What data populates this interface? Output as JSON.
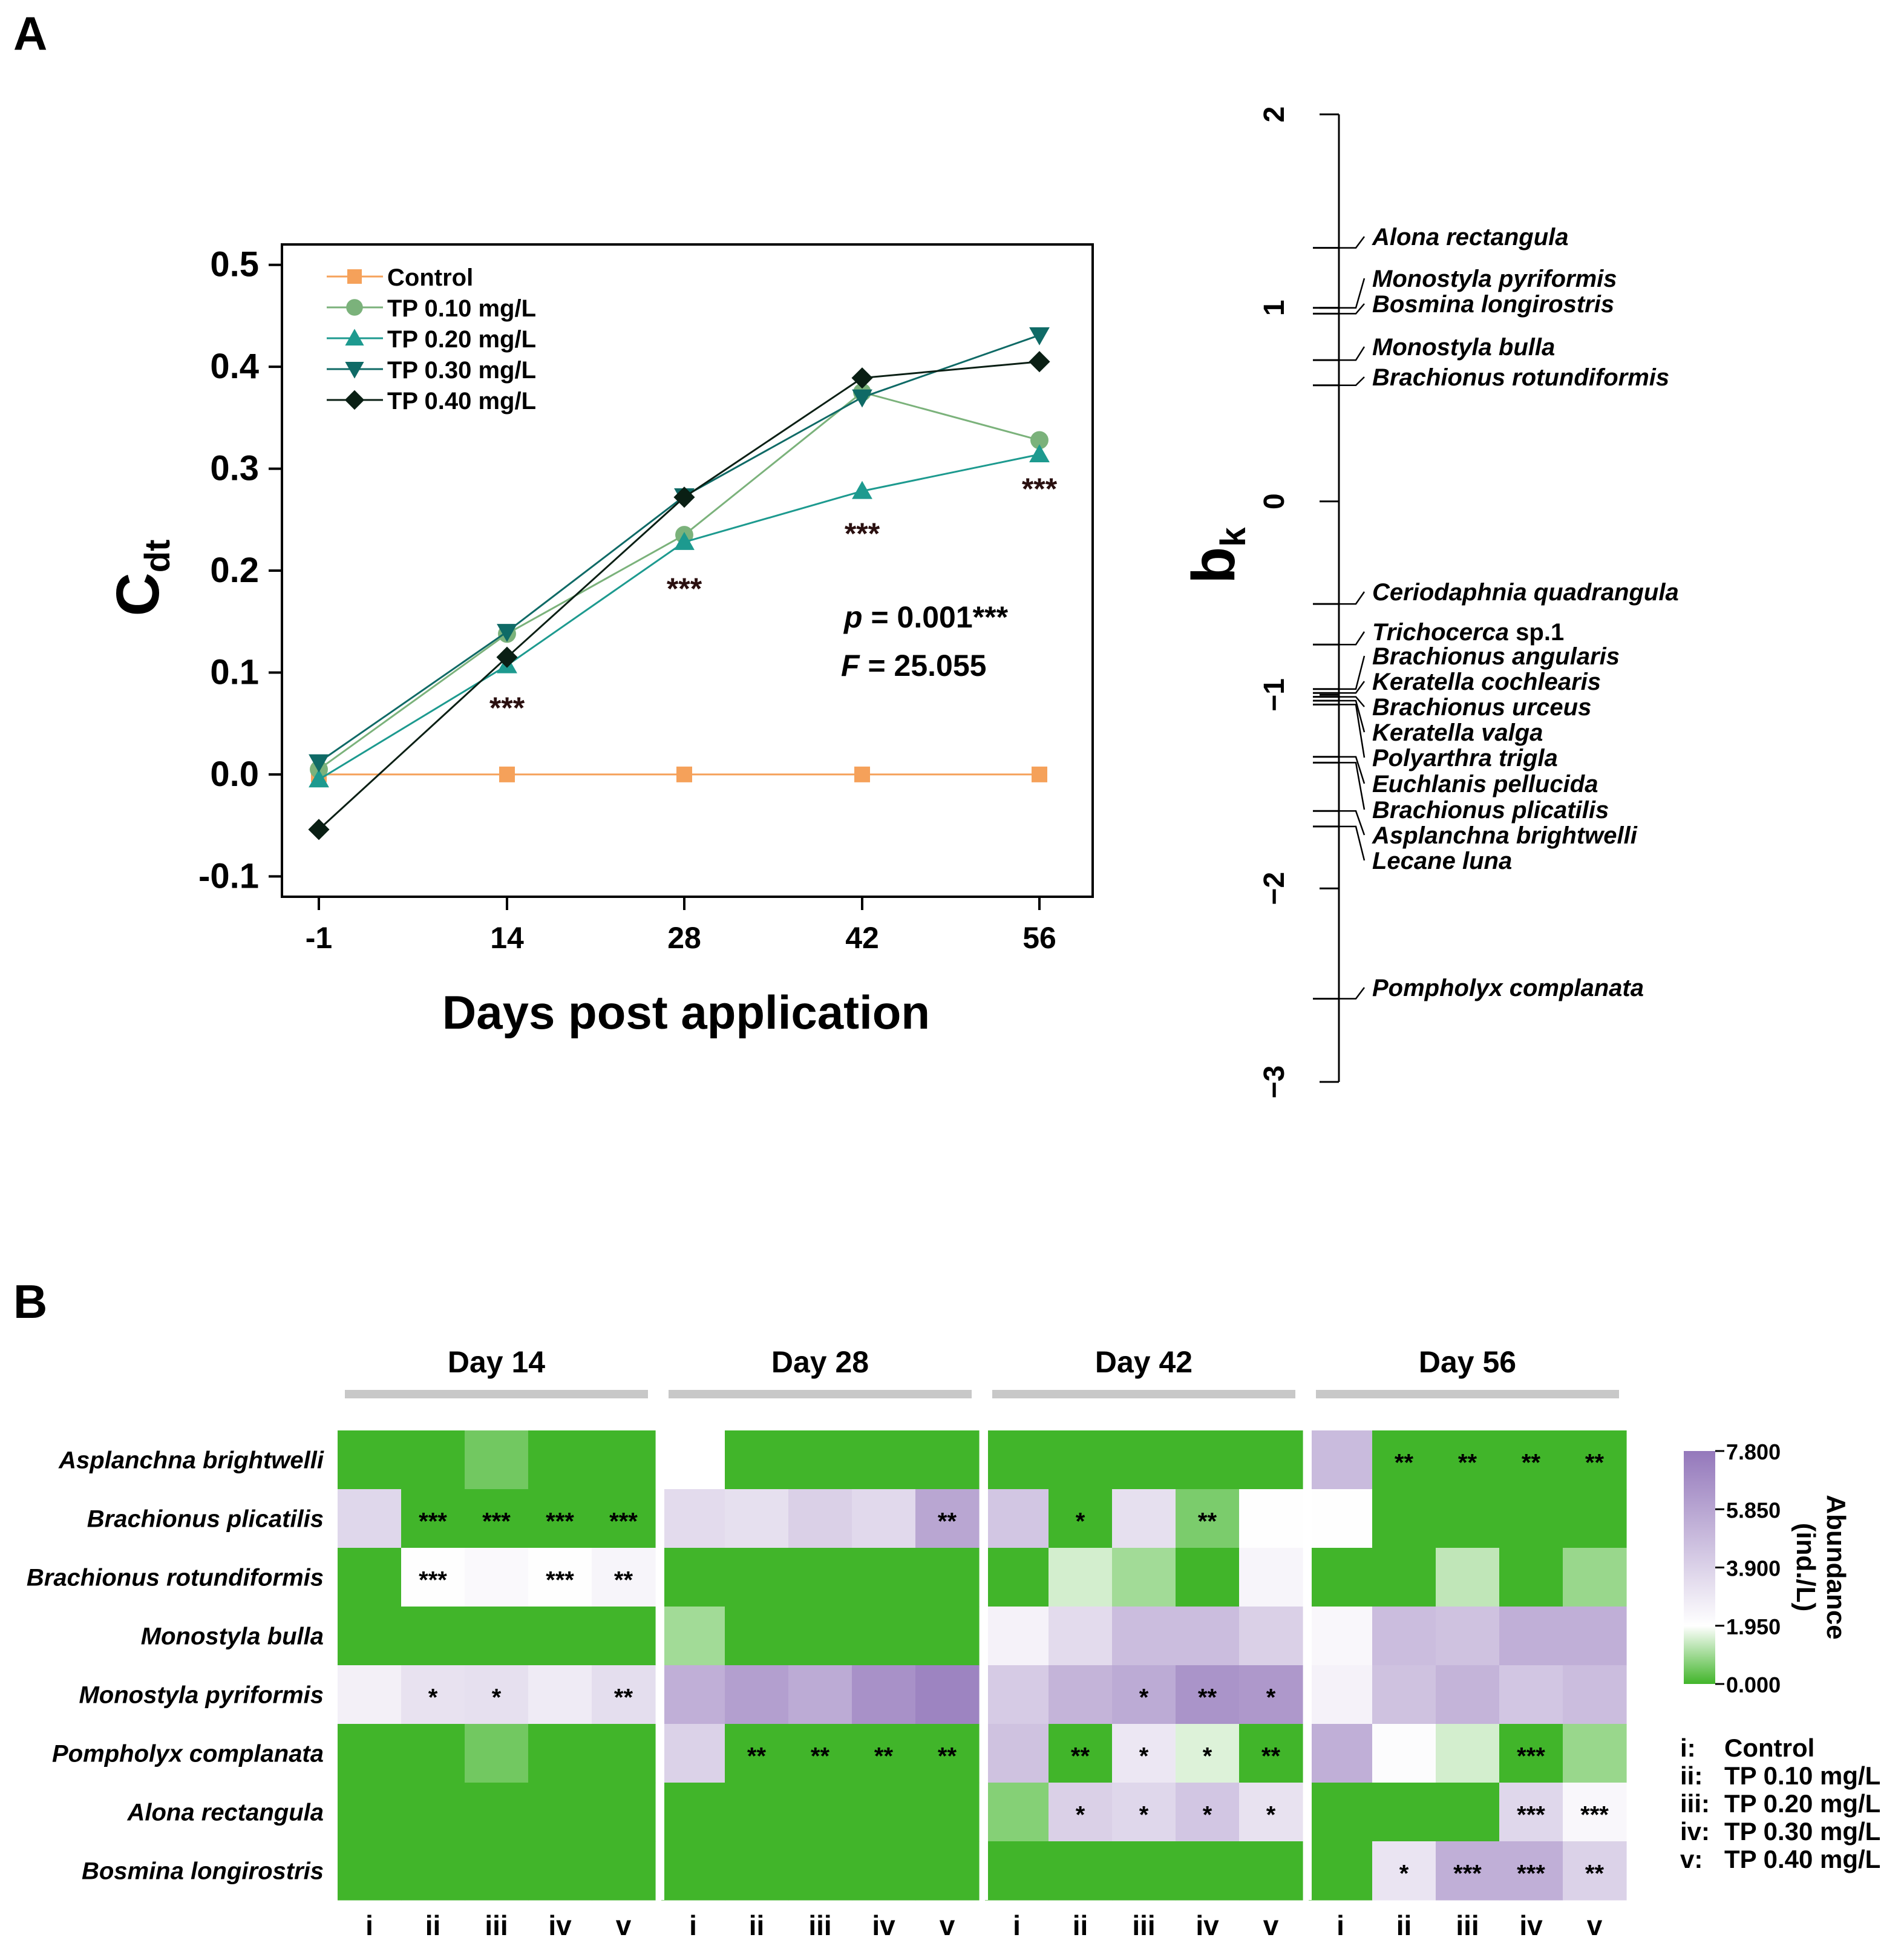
{
  "panel_labels": {
    "a": "A",
    "b": "B"
  },
  "chart_data": [
    {
      "type": "line",
      "id": "cdt-line",
      "title": "",
      "xlabel": "Days post application",
      "ylabel": "C",
      "ylabel_sub": "dt",
      "categories": [
        "-1",
        "14",
        "28",
        "42",
        "56"
      ],
      "yticks": [
        "0.5",
        "0.4",
        "0.3",
        "0.2",
        "0.1",
        "0.0",
        "-0.1"
      ],
      "ytick_values": [
        0.5,
        0.4,
        0.3,
        0.2,
        0.1,
        0.0,
        -0.1
      ],
      "ylim": [
        -0.12,
        0.52
      ],
      "series": [
        {
          "name": "Control",
          "color": "#f5a15a",
          "marker": "square",
          "values": [
            0.0,
            0.0,
            0.0,
            0.0,
            0.0
          ]
        },
        {
          "name": "TP 0.10 mg/L",
          "color": "#7bb27b",
          "marker": "circle",
          "values": [
            0.005,
            0.138,
            0.235,
            0.375,
            0.328
          ]
        },
        {
          "name": "TP 0.20 mg/L",
          "color": "#1d9a8f",
          "marker": "triangle-up",
          "values": [
            -0.005,
            0.107,
            0.228,
            0.278,
            0.314
          ]
        },
        {
          "name": "TP 0.30 mg/L",
          "color": "#0f6a66",
          "marker": "triangle-down",
          "values": [
            0.012,
            0.14,
            0.273,
            0.37,
            0.431
          ]
        },
        {
          "name": "TP 0.40 mg/L",
          "color": "#0a1f14",
          "marker": "diamond",
          "values": [
            -0.054,
            0.115,
            0.272,
            0.389,
            0.405
          ]
        }
      ],
      "significance": [
        {
          "category": "14",
          "label": "***",
          "value": 0.07
        },
        {
          "category": "28",
          "label": "***",
          "value": 0.187
        },
        {
          "category": "42",
          "label": "***",
          "value": 0.241
        },
        {
          "category": "56",
          "label": "***",
          "value": 0.285
        }
      ],
      "stats": {
        "p_label": "p",
        "p_value": " = 0.001***",
        "f_label": "F",
        "f_value": " = 25.055"
      }
    },
    {
      "type": "scatter",
      "id": "bk-axis",
      "ylabel": "b",
      "ylabel_sub": "k",
      "ylim": [
        -3,
        2
      ],
      "yticks": [
        "2",
        "1",
        "0",
        "−1",
        "−2",
        "−3"
      ],
      "ytick_values": [
        2,
        1,
        0,
        -1,
        -2,
        -3
      ],
      "species": [
        {
          "name": "Alona rectangula",
          "value": 1.31,
          "suffix": ""
        },
        {
          "name": "Monostyla pyriformis",
          "value": 1.0,
          "suffix": ""
        },
        {
          "name": "Bosmina longirostris",
          "value": 0.97,
          "suffix": ""
        },
        {
          "name": "Monostyla bulla",
          "value": 0.73,
          "suffix": ""
        },
        {
          "name": "Brachionus rotundiformis",
          "value": 0.6,
          "suffix": ""
        },
        {
          "name": "Ceriodaphnia quadrangula",
          "value": -0.53,
          "suffix": ""
        },
        {
          "name": "Trichocerca",
          "value": -0.74,
          "suffix": " sp.1"
        },
        {
          "name": "Brachionus angularis",
          "value": -0.97,
          "suffix": ""
        },
        {
          "name": "Keratella cochlearis",
          "value": -0.99,
          "suffix": ""
        },
        {
          "name": "Brachionus urceus",
          "value": -1.01,
          "suffix": ""
        },
        {
          "name": "Keratella valga",
          "value": -1.03,
          "suffix": ""
        },
        {
          "name": "Polyarthra trigla",
          "value": -1.05,
          "suffix": ""
        },
        {
          "name": "Euchlanis pellucida",
          "value": -1.32,
          "suffix": ""
        },
        {
          "name": "Brachionus plicatilis",
          "value": -1.35,
          "suffix": ""
        },
        {
          "name": "Asplanchna brightwelli",
          "value": -1.6,
          "suffix": ""
        },
        {
          "name": "Lecane luna",
          "value": -1.68,
          "suffix": ""
        },
        {
          "name": "Pompholyx complanata",
          "value": -2.57,
          "suffix": ""
        }
      ]
    },
    {
      "type": "heatmap",
      "id": "abundance-heatmap",
      "days": [
        "Day 14",
        "Day 28",
        "Day 42",
        "Day 56"
      ],
      "columns": [
        "i",
        "ii",
        "iii",
        "iv",
        "v"
      ],
      "rows": [
        "Asplanchna brightwelli",
        "Brachionus plicatilis",
        "Brachionus rotundiformis",
        "Monostyla bulla",
        "Monostyla pyriformis",
        "Pompholyx complanata",
        "Alona rectangula",
        "Bosmina longirostris"
      ],
      "values": [
        [
          [
            0,
            0,
            0.5,
            0,
            0
          ],
          [
            1.95,
            0,
            0,
            0,
            0
          ],
          [
            0,
            0,
            0,
            0,
            0
          ],
          [
            4.9,
            0,
            0,
            0,
            0
          ]
        ],
        [
          [
            3.7,
            0,
            0,
            0,
            0
          ],
          [
            3.5,
            3.3,
            4.0,
            3.6,
            5.8
          ],
          [
            4.4,
            0,
            3.3,
            0.6,
            2.0
          ],
          [
            2.0,
            0,
            0,
            0,
            0
          ]
        ],
        [
          [
            0,
            2.0,
            2.2,
            2.0,
            2.4
          ],
          [
            0,
            0,
            0,
            0,
            0
          ],
          [
            0,
            1.5,
            1.0,
            0,
            2.4
          ],
          [
            0,
            0,
            1.3,
            0,
            0.9
          ]
        ],
        [
          [
            0,
            0,
            0,
            0,
            0
          ],
          [
            1.0,
            0,
            0,
            0,
            0
          ],
          [
            2.5,
            3.5,
            4.8,
            4.8,
            4.0
          ],
          [
            2.3,
            4.8,
            4.6,
            5.4,
            5.4
          ]
        ],
        [
          [
            2.6,
            3.2,
            3.3,
            2.8,
            3.4
          ],
          [
            5.4,
            6.1,
            5.6,
            6.7,
            7.3
          ],
          [
            4.2,
            5.2,
            5.6,
            6.6,
            6.4
          ],
          [
            2.5,
            4.6,
            5.2,
            4.4,
            4.8
          ]
        ],
        [
          [
            0,
            0,
            0.5,
            0,
            0
          ],
          [
            3.9,
            0,
            0,
            0,
            0
          ],
          [
            4.6,
            0,
            3.0,
            1.6,
            0
          ],
          [
            5.4,
            2.1,
            1.5,
            0,
            0.9
          ]
        ],
        [
          [
            0,
            0,
            0,
            0,
            0
          ],
          [
            0,
            0,
            0,
            0,
            0
          ],
          [
            0.7,
            4.0,
            3.7,
            4.4,
            3.2
          ],
          [
            0,
            0,
            0,
            3.7,
            2.3
          ]
        ],
        [
          [
            0,
            0,
            0,
            0,
            0
          ],
          [
            0,
            0,
            0,
            0,
            0
          ],
          [
            0,
            0,
            0,
            0,
            0
          ],
          [
            0,
            3.1,
            5.4,
            5.4,
            3.9
          ]
        ]
      ],
      "stars": [
        [
          [
            "",
            "",
            "",
            "",
            ""
          ],
          [
            "",
            "",
            "",
            "",
            ""
          ],
          [
            "",
            "",
            "",
            "",
            ""
          ],
          [
            "",
            "**",
            "**",
            "**",
            "**"
          ]
        ],
        [
          [
            "",
            "***",
            "***",
            "***",
            "***"
          ],
          [
            "",
            "",
            "",
            "",
            "**"
          ],
          [
            "",
            "*",
            "",
            "**",
            ""
          ],
          [
            "",
            "",
            "",
            "",
            ""
          ]
        ],
        [
          [
            "",
            "***",
            "",
            "***",
            "**"
          ],
          [
            "",
            "",
            "",
            "",
            ""
          ],
          [
            "",
            "",
            "",
            "",
            ""
          ],
          [
            "",
            "",
            "",
            "",
            ""
          ]
        ],
        [
          [
            "",
            "",
            "",
            "",
            ""
          ],
          [
            "",
            "",
            "",
            "",
            ""
          ],
          [
            "",
            "",
            "",
            "",
            ""
          ],
          [
            "",
            "",
            "",
            "",
            ""
          ]
        ],
        [
          [
            "",
            "*",
            "*",
            "",
            "**"
          ],
          [
            "",
            "",
            "",
            "",
            ""
          ],
          [
            "",
            "",
            "*",
            "**",
            "*"
          ],
          [
            "",
            "",
            "",
            "",
            ""
          ]
        ],
        [
          [
            "",
            "",
            "",
            "",
            ""
          ],
          [
            "",
            "**",
            "**",
            "**",
            "**"
          ],
          [
            "",
            "**",
            "*",
            "*",
            "**"
          ],
          [
            "",
            "",
            "",
            "***",
            ""
          ]
        ],
        [
          [
            "",
            "",
            "",
            "",
            ""
          ],
          [
            "",
            "",
            "",
            "",
            ""
          ],
          [
            "",
            "*",
            "*",
            "*",
            "*"
          ],
          [
            "",
            "",
            "",
            "***",
            "***"
          ]
        ],
        [
          [
            "",
            "",
            "",
            "",
            ""
          ],
          [
            "",
            "",
            "",
            "",
            ""
          ],
          [
            "",
            "",
            "",
            "",
            ""
          ],
          [
            "",
            "*",
            "***",
            "***",
            "**"
          ]
        ]
      ],
      "colorbar": {
        "title": "Abundance",
        "unit": "(ind./L)",
        "min": 0,
        "max": 7.8,
        "ticks": [
          "7.800",
          "5.850",
          "3.900",
          "1.950",
          "0.000"
        ],
        "tick_values": [
          7.8,
          5.85,
          3.9,
          1.95,
          0.0
        ],
        "colors": [
          "#41b52a",
          "#ffffff",
          "#9478bb"
        ]
      },
      "treatment_key": [
        {
          "code": "i:",
          "label": "Control"
        },
        {
          "code": "ii:",
          "label": "TP 0.10 mg/L"
        },
        {
          "code": "iii:",
          "label": "TP 0.20 mg/L"
        },
        {
          "code": "iv:",
          "label": "TP 0.30 mg/L"
        },
        {
          "code": "v:",
          "label": "TP 0.40 mg/L"
        }
      ]
    }
  ]
}
